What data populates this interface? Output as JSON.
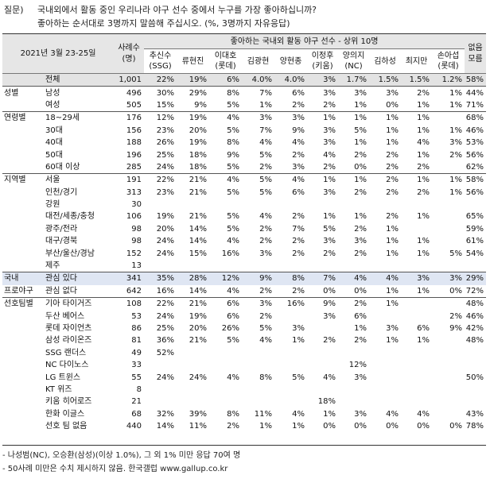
{
  "question": {
    "label": "질문)",
    "line1": "국내외에서 활동 중인 우리나라 야구 선수 중에서 누구를 가장 좋아하십니까?",
    "line2": "좋아하는 순서대로 3명까지 말씀해 주십시오. (%, 3명까지 자유응답)"
  },
  "header": {
    "date": "2021년 3월 23-25일",
    "cases": "사례수\n(명)",
    "group_title": "좋아하는 국내외 활동 야구 선수 - 상위 10명",
    "players": [
      "추신수\n(SSG)",
      "류현진",
      "이대호\n(롯데)",
      "김광현",
      "양현종",
      "이정후\n(키움)",
      "양의지\n(NC)",
      "김하성",
      "최지만",
      "손아섭\n(롯데)"
    ],
    "none": "없음\n모름"
  },
  "rows": [
    {
      "g": "",
      "s": "전체",
      "n": "1,001",
      "v": [
        "22%",
        "19%",
        "6%",
        "4.0%",
        "4.0%",
        "3%",
        "1.7%",
        "1.5%",
        "1.5%",
        "1.2%"
      ],
      "none": "58%",
      "cls": "total"
    },
    {
      "g": "성별",
      "s": "남성",
      "n": "496",
      "v": [
        "30%",
        "29%",
        "8%",
        "7%",
        "6%",
        "3%",
        "3%",
        "3%",
        "2%",
        "1%"
      ],
      "none": "44%",
      "cls": "sep"
    },
    {
      "g": "",
      "s": "여성",
      "n": "505",
      "v": [
        "15%",
        "9%",
        "5%",
        "1%",
        "2%",
        "2%",
        "1%",
        "0%",
        "1%",
        "1%"
      ],
      "none": "71%",
      "cls": ""
    },
    {
      "g": "연령별",
      "s": "18~29세",
      "n": "176",
      "v": [
        "12%",
        "19%",
        "4%",
        "3%",
        "3%",
        "1%",
        "1%",
        "1%",
        "1%",
        ""
      ],
      "none": "68%",
      "cls": "sep"
    },
    {
      "g": "",
      "s": "30대",
      "n": "156",
      "v": [
        "23%",
        "20%",
        "5%",
        "7%",
        "9%",
        "3%",
        "5%",
        "1%",
        "1%",
        "1%"
      ],
      "none": "46%",
      "cls": ""
    },
    {
      "g": "",
      "s": "40대",
      "n": "188",
      "v": [
        "26%",
        "19%",
        "8%",
        "4%",
        "4%",
        "3%",
        "1%",
        "1%",
        "4%",
        "3%"
      ],
      "none": "53%",
      "cls": ""
    },
    {
      "g": "",
      "s": "50대",
      "n": "196",
      "v": [
        "25%",
        "18%",
        "9%",
        "5%",
        "2%",
        "4%",
        "2%",
        "2%",
        "1%",
        "2%"
      ],
      "none": "56%",
      "cls": ""
    },
    {
      "g": "",
      "s": "60대 이상",
      "n": "285",
      "v": [
        "24%",
        "18%",
        "5%",
        "2%",
        "3%",
        "2%",
        "0%",
        "2%",
        "2%",
        ""
      ],
      "none": "62%",
      "cls": ""
    },
    {
      "g": "지역별",
      "s": "서울",
      "n": "191",
      "v": [
        "22%",
        "21%",
        "4%",
        "5%",
        "4%",
        "1%",
        "1%",
        "2%",
        "1%",
        "1%"
      ],
      "none": "58%",
      "cls": "sep"
    },
    {
      "g": "",
      "s": "인천/경기",
      "n": "313",
      "v": [
        "23%",
        "21%",
        "5%",
        "5%",
        "6%",
        "3%",
        "2%",
        "2%",
        "2%",
        "1%"
      ],
      "none": "56%",
      "cls": ""
    },
    {
      "g": "",
      "s": "강원",
      "n": "30",
      "v": [
        "",
        "",
        "",
        "",
        "",
        "",
        "",
        "",
        "",
        ""
      ],
      "none": "",
      "cls": ""
    },
    {
      "g": "",
      "s": "대전/세종/충청",
      "n": "106",
      "v": [
        "19%",
        "21%",
        "5%",
        "4%",
        "2%",
        "1%",
        "1%",
        "2%",
        "1%",
        ""
      ],
      "none": "65%",
      "cls": ""
    },
    {
      "g": "",
      "s": "광주/전라",
      "n": "98",
      "v": [
        "20%",
        "14%",
        "5%",
        "2%",
        "7%",
        "5%",
        "2%",
        "1%",
        "",
        ""
      ],
      "none": "59%",
      "cls": ""
    },
    {
      "g": "",
      "s": "대구/경북",
      "n": "98",
      "v": [
        "24%",
        "14%",
        "4%",
        "2%",
        "2%",
        "3%",
        "3%",
        "1%",
        "1%",
        ""
      ],
      "none": "61%",
      "cls": ""
    },
    {
      "g": "",
      "s": "부산/울산/경남",
      "n": "152",
      "v": [
        "24%",
        "15%",
        "16%",
        "3%",
        "2%",
        "2%",
        "2%",
        "1%",
        "1%",
        "5%"
      ],
      "none": "54%",
      "cls": ""
    },
    {
      "g": "",
      "s": "제주",
      "n": "13",
      "v": [
        "",
        "",
        "",
        "",
        "",
        "",
        "",
        "",
        "",
        ""
      ],
      "none": "",
      "cls": ""
    },
    {
      "g": "국내",
      "s": "관심 있다",
      "n": "341",
      "v": [
        "35%",
        "28%",
        "12%",
        "9%",
        "8%",
        "7%",
        "4%",
        "4%",
        "3%",
        "3%"
      ],
      "none": "29%",
      "cls": "sep hl"
    },
    {
      "g": "프로야구",
      "s": "관심 없다",
      "n": "642",
      "v": [
        "16%",
        "14%",
        "4%",
        "2%",
        "2%",
        "0%",
        "0%",
        "1%",
        "1%",
        "0%"
      ],
      "none": "72%",
      "cls": ""
    },
    {
      "g": "선호팀별",
      "s": "기아 타이거즈",
      "n": "108",
      "v": [
        "22%",
        "21%",
        "6%",
        "3%",
        "16%",
        "9%",
        "2%",
        "1%",
        "",
        ""
      ],
      "none": "48%",
      "cls": "sep"
    },
    {
      "g": "",
      "s": "두산 베어스",
      "n": "53",
      "v": [
        "24%",
        "19%",
        "6%",
        "2%",
        "",
        "3%",
        "6%",
        "",
        "",
        "2%"
      ],
      "none": "46%",
      "cls": ""
    },
    {
      "g": "",
      "s": "롯데 자이언츠",
      "n": "86",
      "v": [
        "25%",
        "20%",
        "26%",
        "5%",
        "3%",
        "",
        "1%",
        "3%",
        "6%",
        "9%"
      ],
      "none": "42%",
      "cls": ""
    },
    {
      "g": "",
      "s": "삼성 라이온즈",
      "n": "81",
      "v": [
        "36%",
        "21%",
        "5%",
        "4%",
        "1%",
        "2%",
        "2%",
        "1%",
        "1%",
        ""
      ],
      "none": "48%",
      "cls": ""
    },
    {
      "g": "",
      "s": "SSG 랜더스",
      "n": "49",
      "v": [
        "52%",
        "",
        "",
        "",
        "",
        "",
        "",
        "",
        "",
        ""
      ],
      "none": "",
      "cls": ""
    },
    {
      "g": "",
      "s": "NC 다이노스",
      "n": "33",
      "v": [
        "",
        "",
        "",
        "",
        "",
        "",
        "12%",
        "",
        "",
        ""
      ],
      "none": "",
      "cls": ""
    },
    {
      "g": "",
      "s": "LG 트윈스",
      "n": "55",
      "v": [
        "24%",
        "24%",
        "4%",
        "8%",
        "5%",
        "4%",
        "3%",
        "",
        "",
        ""
      ],
      "none": "50%",
      "cls": ""
    },
    {
      "g": "",
      "s": "KT 위즈",
      "n": "8",
      "v": [
        "",
        "",
        "",
        "",
        "",
        "",
        "",
        "",
        "",
        ""
      ],
      "none": "",
      "cls": ""
    },
    {
      "g": "",
      "s": "키움 히어로즈",
      "n": "21",
      "v": [
        "",
        "",
        "",
        "",
        "",
        "18%",
        "",
        "",
        "",
        ""
      ],
      "none": "",
      "cls": ""
    },
    {
      "g": "",
      "s": "한화 이글스",
      "n": "68",
      "v": [
        "32%",
        "39%",
        "8%",
        "11%",
        "4%",
        "1%",
        "3%",
        "4%",
        "4%",
        ""
      ],
      "none": "43%",
      "cls": ""
    },
    {
      "g": "",
      "s": "선호 팀 없음",
      "n": "440",
      "v": [
        "14%",
        "11%",
        "2%",
        "1%",
        "1%",
        "0%",
        "0%",
        "0%",
        "0%",
        "0%"
      ],
      "none": "78%",
      "cls": ""
    }
  ],
  "notes": [
    "- 나성범(NC), 오승환(삼성)(이상 1.0%), 그 외 1% 미만 응답 70여 명",
    "- 50사례 미만은 수치 제시하지 않음. 한국갤럽 www.gallup.co.kr"
  ]
}
